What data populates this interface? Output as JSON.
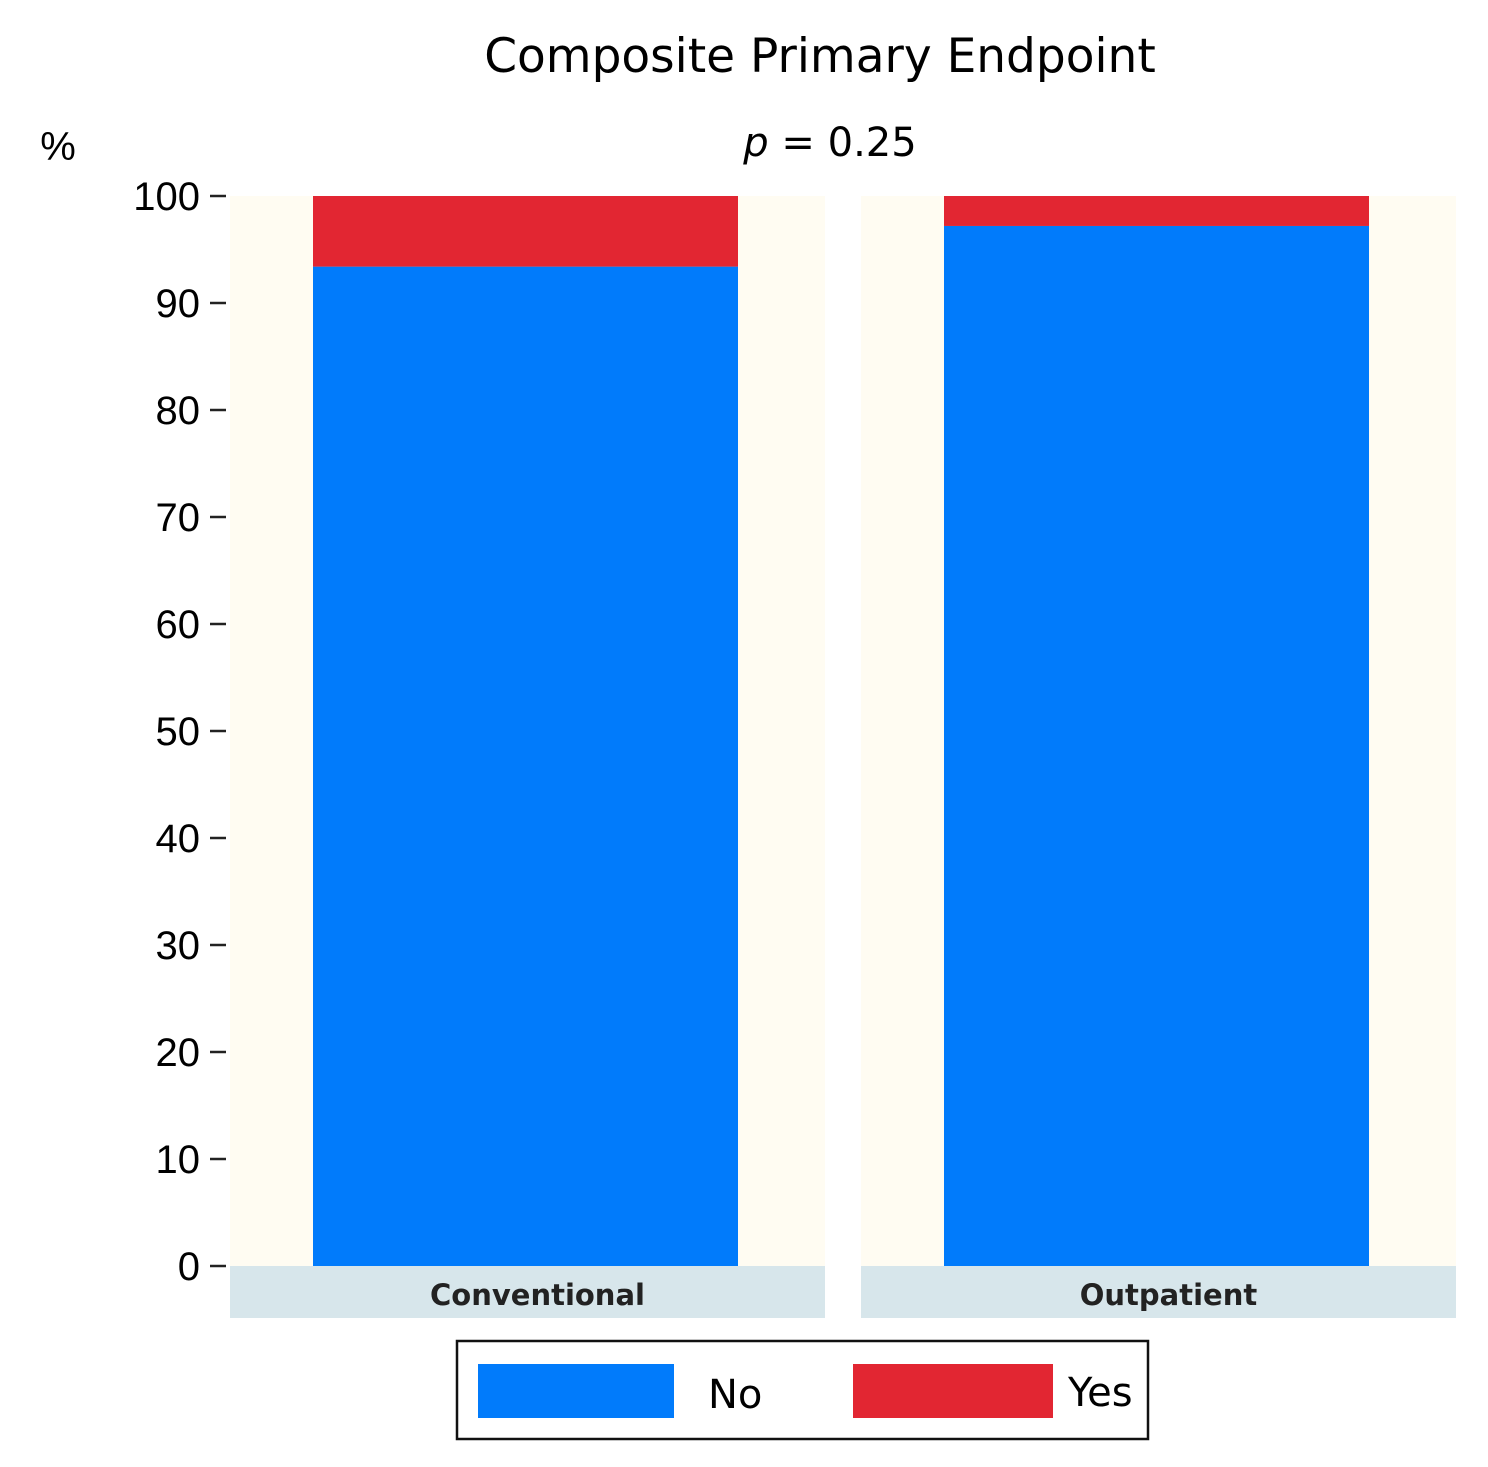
{
  "chart_data": {
    "type": "bar",
    "stacked": true,
    "title": "Composite Primary Endpoint",
    "subtitle": {
      "p_symbol": "p",
      "text": " = 0.25"
    },
    "ylabel": "%",
    "ylim": [
      0,
      100
    ],
    "yticks": [
      0,
      10,
      20,
      30,
      40,
      50,
      60,
      70,
      80,
      90,
      100
    ],
    "categories": [
      "Conventional",
      "Outpatient"
    ],
    "series": [
      {
        "name": "No",
        "color": "#017BFB",
        "values": [
          93.4,
          97.2
        ]
      },
      {
        "name": "Yes",
        "color": "#E22632",
        "values": [
          6.6,
          2.8
        ]
      }
    ],
    "panel_background": "#FFFCF2",
    "strip_background": "#D7E6EB",
    "legend_position": "bottom",
    "grid": false
  }
}
